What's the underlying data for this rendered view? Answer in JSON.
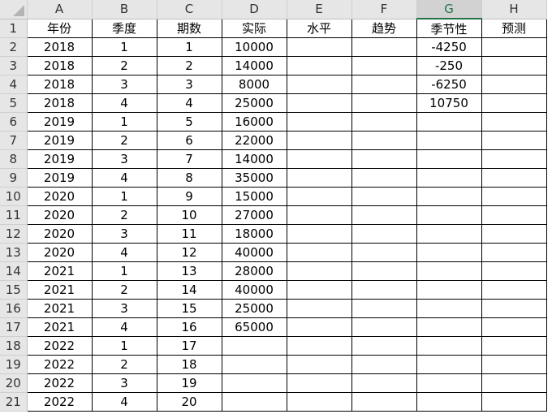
{
  "columns": [
    "A",
    "B",
    "C",
    "D",
    "E",
    "F",
    "G",
    "H"
  ],
  "selected_column": "G",
  "headers": [
    "年份",
    "季度",
    "期数",
    "实际",
    "水平",
    "趋势",
    "季节性",
    "预测"
  ],
  "rows": [
    [
      "2018",
      "1",
      "1",
      "10000",
      "",
      "",
      "-4250",
      ""
    ],
    [
      "2018",
      "2",
      "2",
      "14000",
      "",
      "",
      "-250",
      ""
    ],
    [
      "2018",
      "3",
      "3",
      "8000",
      "",
      "",
      "-6250",
      ""
    ],
    [
      "2018",
      "4",
      "4",
      "25000",
      "",
      "",
      "10750",
      ""
    ],
    [
      "2019",
      "1",
      "5",
      "16000",
      "",
      "",
      "",
      ""
    ],
    [
      "2019",
      "2",
      "6",
      "22000",
      "",
      "",
      "",
      ""
    ],
    [
      "2019",
      "3",
      "7",
      "14000",
      "",
      "",
      "",
      ""
    ],
    [
      "2019",
      "4",
      "8",
      "35000",
      "",
      "",
      "",
      ""
    ],
    [
      "2020",
      "1",
      "9",
      "15000",
      "",
      "",
      "",
      ""
    ],
    [
      "2020",
      "2",
      "10",
      "27000",
      "",
      "",
      "",
      ""
    ],
    [
      "2020",
      "3",
      "11",
      "18000",
      "",
      "",
      "",
      ""
    ],
    [
      "2020",
      "4",
      "12",
      "40000",
      "",
      "",
      "",
      ""
    ],
    [
      "2021",
      "1",
      "13",
      "28000",
      "",
      "",
      "",
      ""
    ],
    [
      "2021",
      "2",
      "14",
      "40000",
      "",
      "",
      "",
      ""
    ],
    [
      "2021",
      "3",
      "15",
      "25000",
      "",
      "",
      "",
      ""
    ],
    [
      "2021",
      "4",
      "16",
      "65000",
      "",
      "",
      "",
      ""
    ],
    [
      "2022",
      "1",
      "17",
      "",
      "",
      "",
      "",
      ""
    ],
    [
      "2022",
      "2",
      "18",
      "",
      "",
      "",
      "",
      ""
    ],
    [
      "2022",
      "3",
      "19",
      "",
      "",
      "",
      "",
      ""
    ],
    [
      "2022",
      "4",
      "20",
      "",
      "",
      "",
      "",
      ""
    ]
  ]
}
